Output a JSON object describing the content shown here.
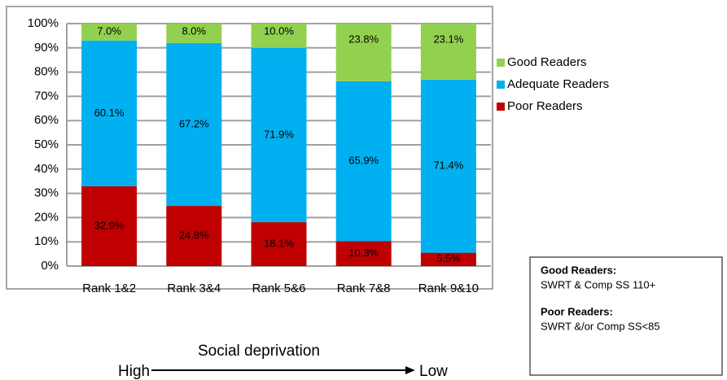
{
  "chart_data": {
    "type": "stacked_bar",
    "categories": [
      "Rank 1&2",
      "Rank 3&4",
      "Rank 5&6",
      "Rank 7&8",
      "Rank 9&10"
    ],
    "series": [
      {
        "name": "Poor Readers",
        "color": "#c00000",
        "values": [
          32.9,
          24.8,
          18.1,
          10.3,
          5.5
        ],
        "value_labels": [
          "32.9%",
          "24.8%",
          "18.1%",
          "10.3%",
          "5.5%"
        ]
      },
      {
        "name": "Adequate Readers",
        "color": "#00b0f0",
        "values": [
          60.1,
          67.2,
          71.9,
          65.9,
          71.4
        ],
        "value_labels": [
          "60.1%",
          "67.2%",
          "71.9%",
          "65.9%",
          "71.4%"
        ]
      },
      {
        "name": "Good Readers",
        "color": "#92d050",
        "values": [
          7.0,
          8.0,
          10.0,
          23.8,
          23.1
        ],
        "value_labels": [
          "7.0%",
          "8.0%",
          "10.0%",
          "23.8%",
          "23.1%"
        ]
      }
    ],
    "ylim": [
      0,
      100
    ],
    "yticks": [
      {
        "value": 0,
        "label": "0%"
      },
      {
        "value": 10,
        "label": "10%"
      },
      {
        "value": 20,
        "label": "20%"
      },
      {
        "value": 30,
        "label": "30%"
      },
      {
        "value": 40,
        "label": "40%"
      },
      {
        "value": 50,
        "label": "50%"
      },
      {
        "value": 60,
        "label": "60%"
      },
      {
        "value": 70,
        "label": "70%"
      },
      {
        "value": 80,
        "label": "80%"
      },
      {
        "value": 90,
        "label": "90%"
      },
      {
        "value": 100,
        "label": "100%"
      }
    ],
    "grid": true,
    "legend": "right",
    "axis_annotation": {
      "label": "Social deprivation",
      "start": "High",
      "end": "Low"
    },
    "note": {
      "good_title": "Good Readers:",
      "good_text": "SWRT & Comp SS 110+",
      "poor_title": "Poor Readers:",
      "poor_text": "SWRT &/or Comp SS<85"
    }
  }
}
